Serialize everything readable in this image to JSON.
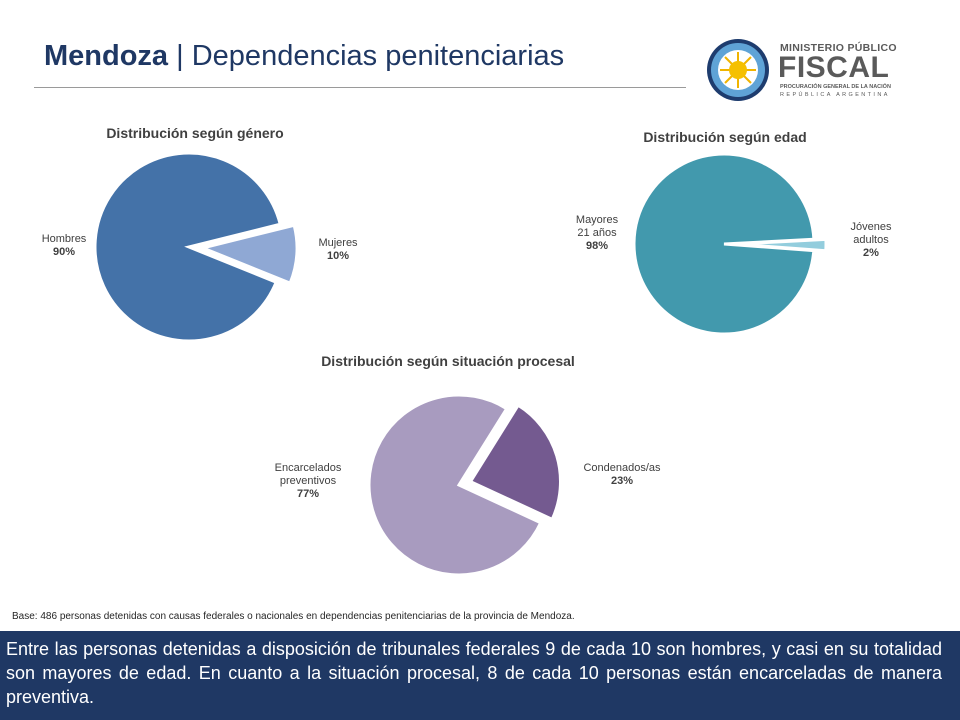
{
  "header": {
    "title_bold": "Mendoza",
    "title_sep": "|",
    "title_rest": "Dependencias penitenciarias"
  },
  "logo": {
    "line1": "MINISTERIO PÚBLICO",
    "line2": "FISCAL",
    "line3": "PROCURACIÓN GENERAL DE LA NACIÓN",
    "line4": "REPÚBLICA ARGENTINA"
  },
  "chart_data": [
    {
      "type": "pie",
      "title": "Distribución según género",
      "slices": [
        {
          "name": "Hombres",
          "value": 90,
          "label": "90%",
          "color": "#4472a8"
        },
        {
          "name": "Mujeres",
          "value": 10,
          "label": "10%",
          "color": "#8fa8d4",
          "exploded": true
        }
      ]
    },
    {
      "type": "pie",
      "title": "Distribución según edad",
      "slices": [
        {
          "name": "Mayores 21 años",
          "value": 98,
          "label": "98%",
          "color": "#4299ad"
        },
        {
          "name": "Jóvenes adultos",
          "value": 2,
          "label": "2%",
          "color": "#93cddd",
          "exploded": true
        }
      ]
    },
    {
      "type": "pie",
      "title": "Distribución según situación procesal",
      "slices": [
        {
          "name": "Encarcelados preventivos",
          "value": 77,
          "label": "77%",
          "color": "#a89bbf"
        },
        {
          "name": "Condenados/as",
          "value": 23,
          "label": "23%",
          "color": "#745a90",
          "exploded": true
        }
      ]
    }
  ],
  "labels": {
    "hombres": "Hombres",
    "mujeres": "Mujeres",
    "mayores": [
      "Mayores",
      "21 años"
    ],
    "jovenes": [
      "Jóvenes",
      "adultos"
    ],
    "encarcelados": [
      "Encarcelados",
      "preventivos"
    ],
    "condenados": "Condenados/as"
  },
  "footnote": "Base: 486 personas detenidas con causas federales o nacionales en dependencias penitenciarias de la provincia de Mendoza.",
  "summary": "Entre las personas detenidas a disposición de tribunales federales 9 de cada 10 son hombres, y casi en su totalidad son mayores de edad. En cuanto a la situación procesal, 8 de cada 10 personas están encarceladas de manera preventiva."
}
